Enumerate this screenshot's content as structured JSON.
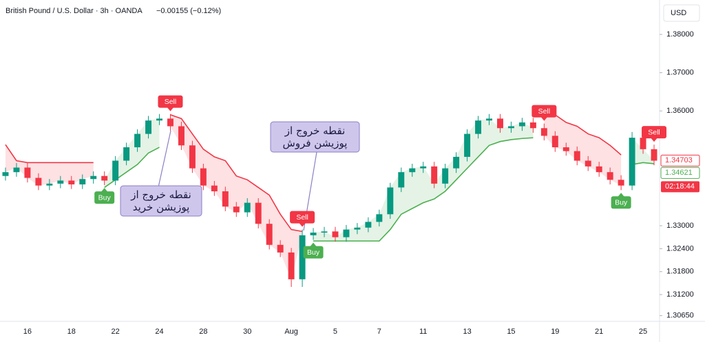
{
  "header": {
    "symbol": "British Pound / U.S. Dollar · 3h · OANDA",
    "change": "−0.00155 (−0.12%)",
    "currency": "USD",
    "countdown": "02:18:44"
  },
  "chart_data": {
    "type": "candlestick",
    "categories": [
      null,
      null,
      "16",
      null,
      null,
      null,
      "18",
      null,
      null,
      null,
      "22",
      null,
      null,
      null,
      "24",
      null,
      null,
      null,
      "28",
      null,
      null,
      null,
      "30",
      null,
      null,
      null,
      "Aug",
      null,
      null,
      null,
      "5",
      null,
      null,
      null,
      "7",
      null,
      null,
      null,
      "11",
      null,
      null,
      null,
      "13",
      null,
      null,
      null,
      "15",
      null,
      null,
      null,
      "19",
      null,
      null,
      null,
      "21",
      null,
      null,
      null,
      "25",
      null
    ],
    "open": [
      1.343,
      1.344,
      1.3452,
      1.3425,
      1.3405,
      1.341,
      1.3418,
      1.3408,
      1.3422,
      1.343,
      1.3418,
      1.347,
      1.3505,
      1.354,
      1.3575,
      1.358,
      1.356,
      1.351,
      1.345,
      1.3405,
      1.339,
      1.335,
      1.3335,
      1.336,
      1.3305,
      1.325,
      1.323,
      1.316,
      1.3275,
      1.3282,
      1.3285,
      1.327,
      1.329,
      1.3295,
      1.331,
      1.333,
      1.34,
      1.344,
      1.345,
      1.3455,
      1.341,
      1.345,
      1.348,
      1.354,
      1.3575,
      1.358,
      1.3555,
      1.356,
      1.357,
      1.3555,
      1.3535,
      1.3505,
      1.3495,
      1.347,
      1.3455,
      1.344,
      1.342,
      1.3405,
      1.353,
      1.35
    ],
    "high": [
      1.3452,
      1.3464,
      1.3464,
      1.3437,
      1.3422,
      1.343,
      1.343,
      1.3434,
      1.3442,
      1.3442,
      1.3482,
      1.3517,
      1.3552,
      1.3587,
      1.3592,
      1.3592,
      1.3572,
      1.3522,
      1.3462,
      1.3417,
      1.3402,
      1.3362,
      1.3372,
      1.3372,
      1.3317,
      1.3262,
      1.3242,
      1.329,
      1.3294,
      1.3297,
      1.3297,
      1.3302,
      1.3307,
      1.3322,
      1.3342,
      1.3412,
      1.3452,
      1.3462,
      1.3467,
      1.3467,
      1.3462,
      1.3492,
      1.3552,
      1.3587,
      1.3592,
      1.3592,
      1.3572,
      1.3582,
      1.3582,
      1.3567,
      1.3547,
      1.3517,
      1.3507,
      1.3482,
      1.3467,
      1.3452,
      1.3432,
      1.3545,
      1.3542,
      1.3512
    ],
    "low": [
      1.3418,
      1.3428,
      1.3413,
      1.3393,
      1.3393,
      1.3398,
      1.3396,
      1.3396,
      1.341,
      1.3406,
      1.3406,
      1.3458,
      1.3493,
      1.3528,
      1.3563,
      1.3548,
      1.3498,
      1.3438,
      1.3393,
      1.3378,
      1.3338,
      1.3323,
      1.3323,
      1.3293,
      1.3238,
      1.3218,
      1.314,
      1.314,
      1.3263,
      1.327,
      1.3258,
      1.3258,
      1.3278,
      1.3283,
      1.3298,
      1.3318,
      1.3388,
      1.3428,
      1.3438,
      1.3398,
      1.3398,
      1.3438,
      1.3468,
      1.3528,
      1.3563,
      1.3543,
      1.3543,
      1.3548,
      1.3543,
      1.3523,
      1.3493,
      1.3483,
      1.3458,
      1.3443,
      1.3428,
      1.3408,
      1.3393,
      1.3393,
      1.3488,
      1.3458
    ],
    "close": [
      1.344,
      1.3452,
      1.3425,
      1.3405,
      1.341,
      1.3418,
      1.3408,
      1.3422,
      1.343,
      1.3418,
      1.347,
      1.3505,
      1.354,
      1.3575,
      1.358,
      1.356,
      1.351,
      1.345,
      1.3405,
      1.339,
      1.335,
      1.3335,
      1.336,
      1.3305,
      1.325,
      1.323,
      1.316,
      1.3275,
      1.3282,
      1.3285,
      1.327,
      1.329,
      1.3295,
      1.331,
      1.333,
      1.34,
      1.344,
      1.345,
      1.3455,
      1.341,
      1.345,
      1.348,
      1.354,
      1.3575,
      1.358,
      1.3555,
      1.356,
      1.357,
      1.3555,
      1.3535,
      1.3505,
      1.3495,
      1.347,
      1.3455,
      1.344,
      1.342,
      1.3405,
      1.353,
      1.35,
      1.347
    ],
    "up_color": "#089981",
    "down_color": "#f23645",
    "trend_up": {
      "color": "#4caf50",
      "fill": "rgba(76,175,80,0.15)",
      "values": [
        null,
        null,
        null,
        null,
        null,
        null,
        null,
        null,
        null,
        1.34,
        1.342,
        1.344,
        1.346,
        1.349,
        1.3505,
        null,
        null,
        null,
        null,
        null,
        null,
        null,
        null,
        null,
        null,
        null,
        null,
        null,
        1.326,
        1.326,
        1.326,
        1.326,
        1.326,
        1.326,
        1.326,
        1.329,
        1.333,
        1.3345,
        1.336,
        1.337,
        1.339,
        1.342,
        1.345,
        1.348,
        1.351,
        1.352,
        1.3525,
        1.3528,
        1.353,
        null,
        null,
        null,
        null,
        null,
        null,
        null,
        null,
        1.346,
        1.3465,
        1.3462
      ]
    },
    "trend_down": {
      "color": "#f23645",
      "fill": "rgba(242,54,69,0.15)",
      "values": [
        1.3512,
        1.347,
        1.3465,
        1.3465,
        1.3465,
        1.3465,
        1.3465,
        1.3465,
        1.3465,
        null,
        null,
        null,
        null,
        null,
        null,
        1.359,
        1.358,
        1.354,
        1.35,
        1.348,
        1.347,
        1.343,
        1.342,
        1.34,
        1.338,
        1.333,
        1.329,
        1.3285,
        null,
        null,
        null,
        null,
        null,
        null,
        null,
        null,
        null,
        null,
        null,
        null,
        null,
        null,
        null,
        null,
        null,
        null,
        null,
        null,
        null,
        1.36,
        1.359,
        1.357,
        1.356,
        1.354,
        1.353,
        1.351,
        1.3485,
        null,
        null,
        null
      ]
    },
    "signals": [
      {
        "label": "Buy",
        "index": 9,
        "position": "below",
        "color": "#4caf50"
      },
      {
        "label": "Sell",
        "index": 15,
        "position": "above",
        "color": "#f23645"
      },
      {
        "label": "Sell",
        "index": 27,
        "position": "above",
        "color": "#f23645"
      },
      {
        "label": "Buy",
        "index": 28,
        "position": "below",
        "color": "#4caf50"
      },
      {
        "label": "Sell",
        "index": 49,
        "position": "above",
        "color": "#f23645"
      },
      {
        "label": "Buy",
        "index": 56,
        "position": "below",
        "color": "#4caf50"
      },
      {
        "label": "Sell",
        "index": 59,
        "position": "above",
        "color": "#f23645"
      }
    ],
    "price_labels": [
      {
        "value": 1.34703,
        "label": "1.34703",
        "color": "#f23645"
      },
      {
        "value": 1.34621,
        "label": "1.34621",
        "color": "#4caf50"
      }
    ],
    "annotations": [
      "نقطه خروج از پوزیشن خرید",
      "نقطه خروج از پوزیشن فروش"
    ],
    "ylim": [
      1.305,
      1.389
    ],
    "yticks": [
      {
        "value": 1.38,
        "label": "1.38000"
      },
      {
        "value": 1.37,
        "label": "1.37000"
      },
      {
        "value": 1.36,
        "label": "1.36000"
      },
      {
        "value": 1.33,
        "label": "1.33000"
      },
      {
        "value": 1.324,
        "label": "1.32400"
      },
      {
        "value": 1.318,
        "label": "1.31800"
      },
      {
        "value": 1.312,
        "label": "1.31200"
      },
      {
        "value": 1.3065,
        "label": "1.30650"
      }
    ],
    "grid": false
  }
}
